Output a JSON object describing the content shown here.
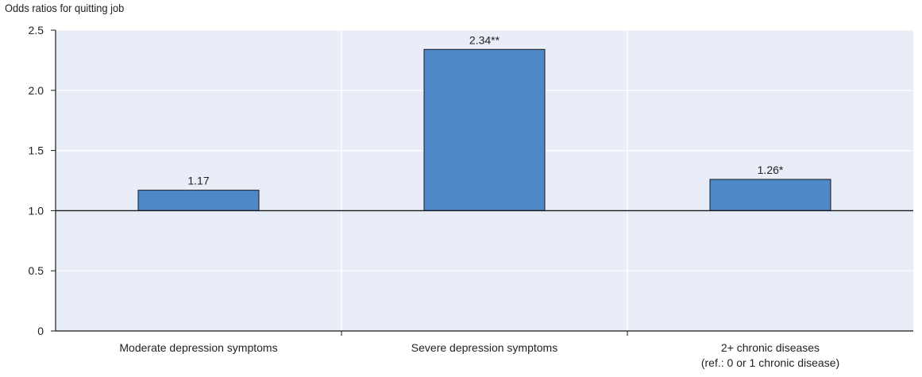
{
  "chart_data": {
    "type": "bar",
    "ylabel": "Odds ratios for quitting job",
    "categories": [
      [
        "Moderate depression symptoms"
      ],
      [
        "Severe depression symptoms"
      ],
      [
        "2+ chronic diseases",
        "(ref.: 0 or 1 chronic disease)"
      ]
    ],
    "values": [
      1.17,
      2.34,
      1.26
    ],
    "data_labels": [
      "1.17",
      "2.34**",
      "1.26*"
    ],
    "ylim": [
      0,
      2.5
    ],
    "baseline": 1.0,
    "yticks": [
      0,
      0.5,
      1.0,
      1.5,
      2.0,
      2.5
    ],
    "ytick_labels": [
      "0",
      "0.5",
      "1.0",
      "1.5",
      "2.0",
      "2.5"
    ],
    "grid": true,
    "colors": {
      "plot_background": "#e9edf8",
      "bar_fill": "#4f88c6",
      "bar_stroke": "#1a1a1a",
      "gridline": "#ffffff",
      "axis": "#1a1a1a"
    }
  }
}
